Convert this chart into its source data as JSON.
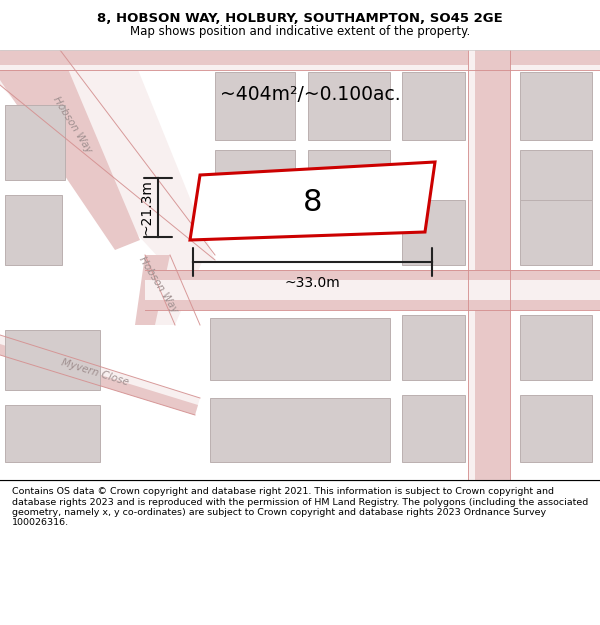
{
  "title_line1": "8, HOBSON WAY, HOLBURY, SOUTHAMPTON, SO45 2GE",
  "title_line2": "Map shows position and indicative extent of the property.",
  "area_text": "~404m²/~0.100ac.",
  "dim_width": "~33.0m",
  "dim_height": "~21.3m",
  "plot_number": "8",
  "footer_text": "Contains OS data © Crown copyright and database right 2021. This information is subject to Crown copyright and database rights 2023 and is reproduced with the permission of HM Land Registry. The polygons (including the associated geometry, namely x, y co-ordinates) are subject to Crown copyright and database rights 2023 Ordnance Survey 100026316.",
  "map_bg": "#f2eded",
  "road_color": "#e8c8c8",
  "road_white": "#f8f0f0",
  "building_color": "#d4cccc",
  "building_edge": "#bbb0b0",
  "plot_fill": "#ffffff",
  "plot_edge": "#cc0000",
  "street_label_color": "#a09090",
  "dim_color": "#222222",
  "title_bg": "#ffffff",
  "footer_bg": "#ffffff"
}
